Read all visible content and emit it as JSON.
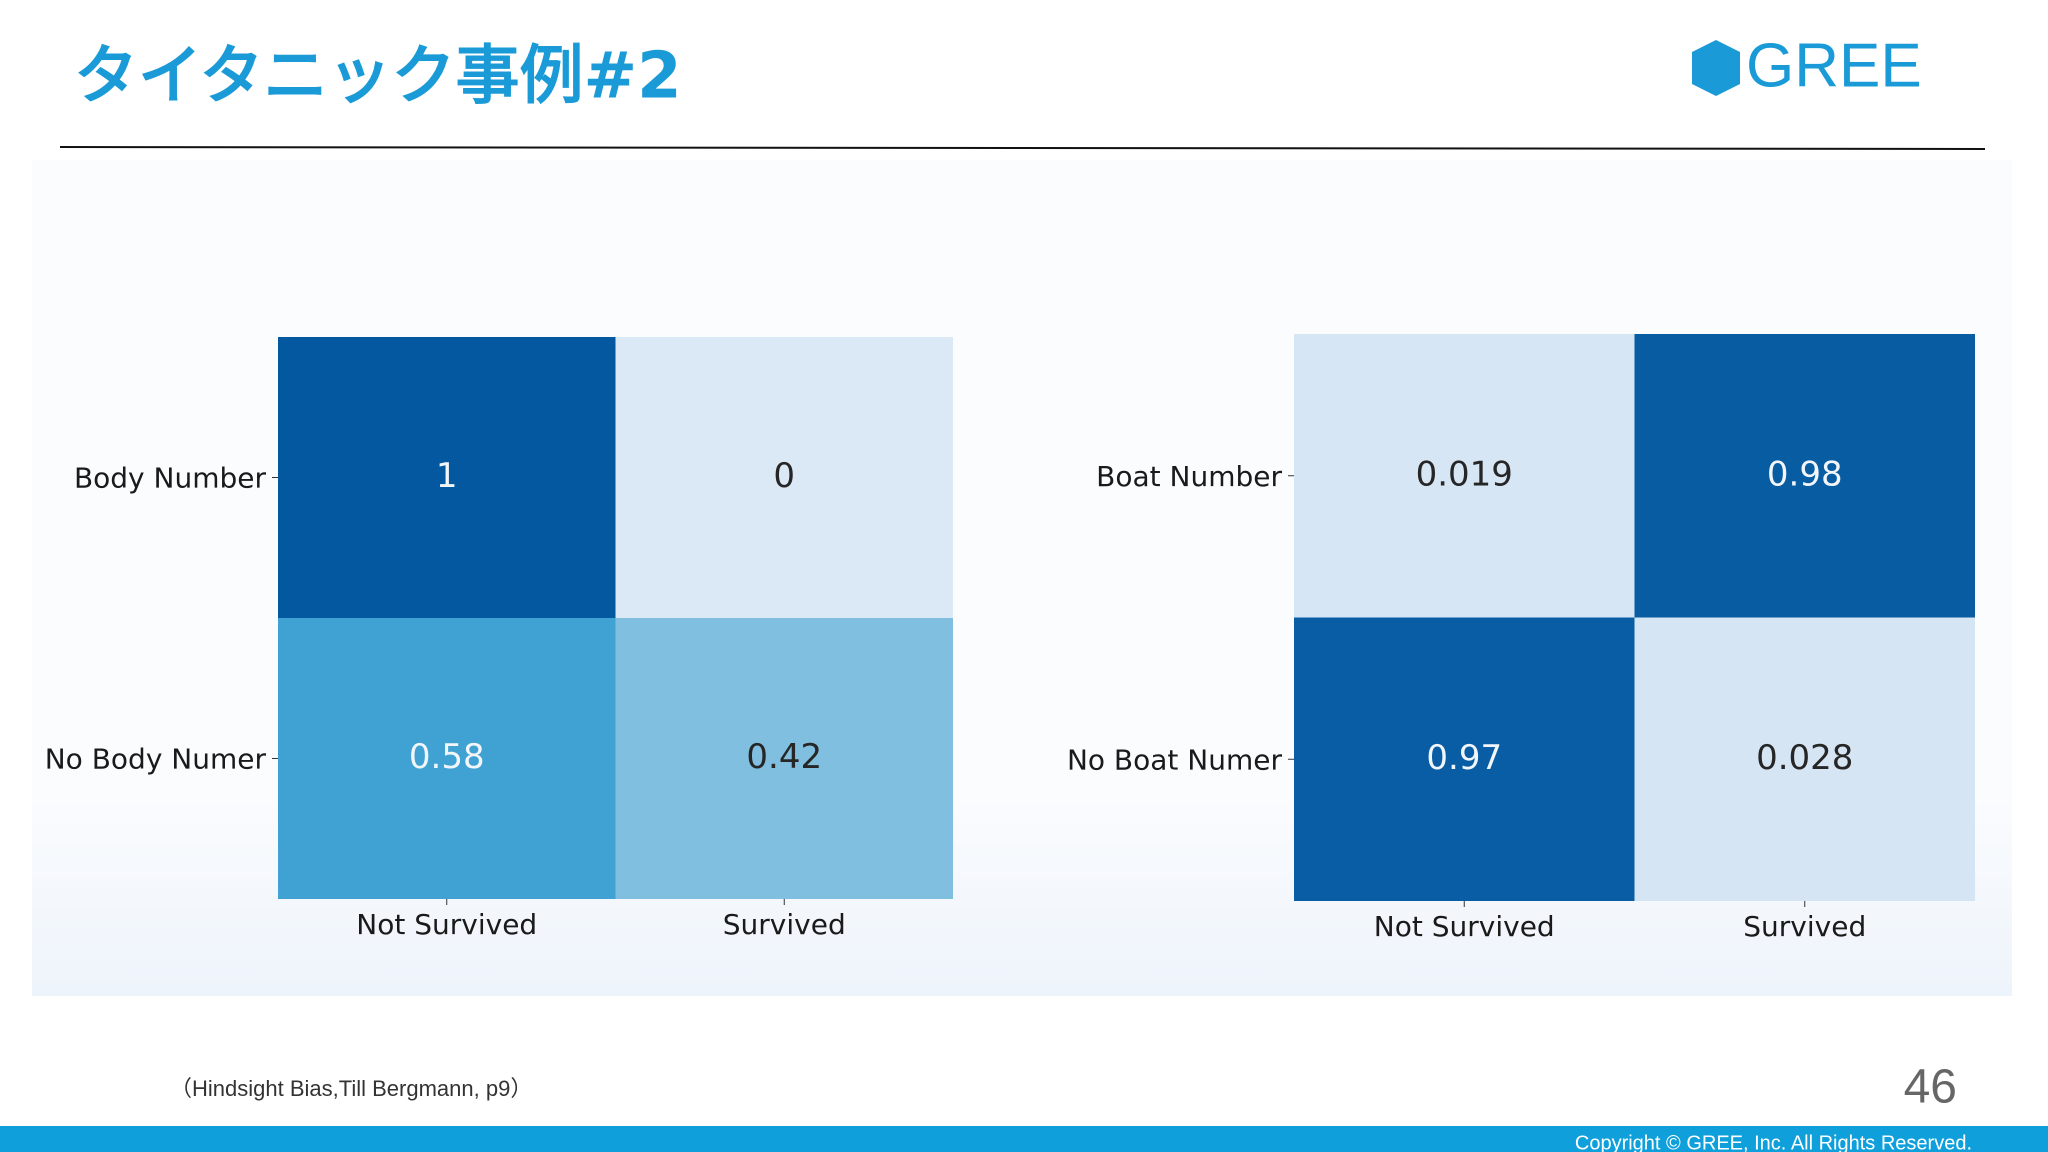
{
  "title": "タイタニック事例#2",
  "logo": "GREE",
  "chart_data": [
    {
      "type": "heatmap",
      "colormap": "Blues",
      "clim": [
        0,
        1
      ],
      "x_categories": [
        "Not Survived",
        "Survived"
      ],
      "y_categories": [
        "Body Number",
        "No Body Numer"
      ],
      "values": [
        [
          1,
          0
        ],
        [
          0.58,
          0.42
        ]
      ]
    },
    {
      "type": "heatmap",
      "colormap": "Blues",
      "clim": [
        0,
        1
      ],
      "x_categories": [
        "Not Survived",
        "Survived"
      ],
      "y_categories": [
        "Boat Number",
        "No Boat Numer"
      ],
      "values": [
        [
          0.019,
          0.98
        ],
        [
          0.97,
          0.028
        ]
      ]
    }
  ],
  "citation": "（Hindsight Bias,Till Bergmann, p9）",
  "page_number": "46",
  "copyright": "Copyright © GREE, Inc. All Rights Reserved."
}
